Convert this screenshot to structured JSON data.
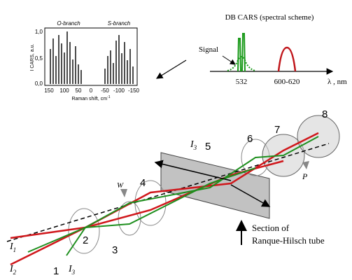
{
  "spectrum": {
    "y_label": "I CARS, a.u.",
    "y_ticks": [
      "1,0",
      "0,5",
      "0,0"
    ],
    "o_branch": "O-branch",
    "s_branch": "S-branch",
    "x_ticks": [
      "150",
      "100",
      "50",
      "0",
      "-50",
      "-100",
      "-150"
    ],
    "x_label": {
      "text": "Raman shift, cm",
      "exponent": "-1"
    }
  },
  "scheme": {
    "title": "DB CARS (spectral scheme)",
    "signal": "Signal",
    "ticks": [
      "532",
      "600-620"
    ],
    "axis_unit": "λ , nm"
  },
  "setup": {
    "beams": [
      {
        "symbol": "I",
        "index": "1"
      },
      {
        "symbol": "I",
        "index": "2"
      },
      {
        "symbol": "I",
        "index": "3"
      },
      {
        "symbol": "I",
        "index": "3"
      }
    ],
    "numbers": [
      "1",
      "2",
      "3",
      "4",
      "5",
      "6",
      "7",
      "8"
    ],
    "window": "W",
    "polarizer": "P",
    "section": [
      "Section of",
      "Ranque-Hilsch tube"
    ]
  }
}
